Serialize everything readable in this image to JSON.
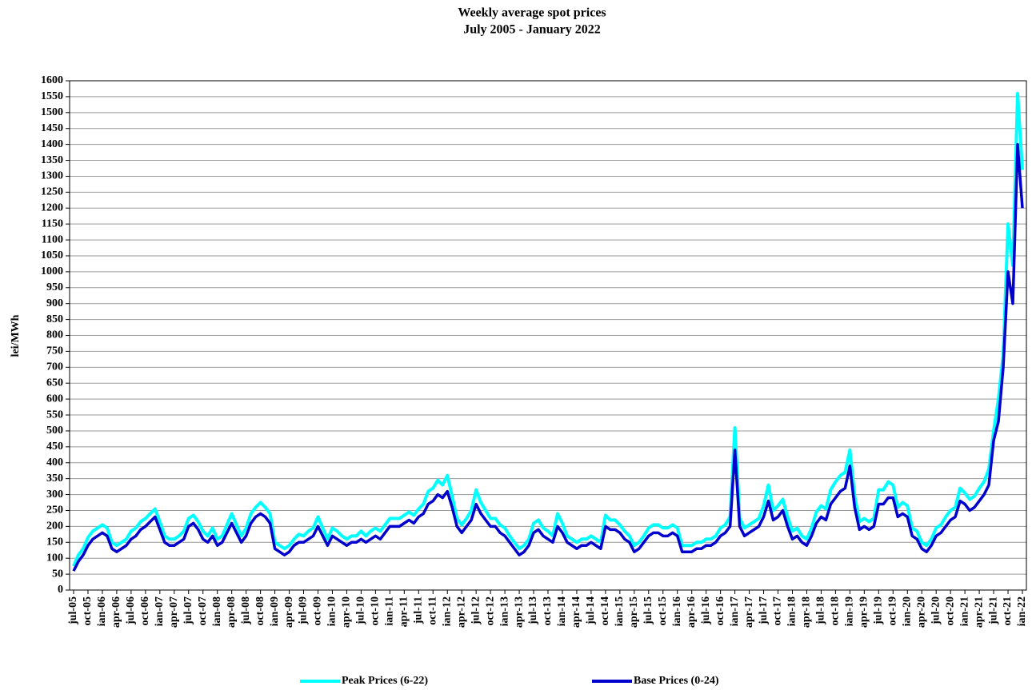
{
  "chart_data": {
    "type": "line",
    "title": "Weekly average spot prices",
    "subtitle": "July 2005 -  January 2022",
    "y_label": "lei/MWh",
    "categories": [
      "jul-05",
      null,
      null,
      "oct-05",
      null,
      null,
      "ian-06",
      null,
      null,
      "apr-06",
      null,
      null,
      "jul-06",
      null,
      null,
      "oct-06",
      null,
      null,
      "ian-07",
      null,
      null,
      "apr-07",
      null,
      null,
      "jul-07",
      null,
      null,
      "oct-07",
      null,
      null,
      "ian-08",
      null,
      null,
      "apr-08",
      null,
      null,
      "jul-08",
      null,
      null,
      "oct-08",
      null,
      null,
      "ian-09",
      null,
      null,
      "apr-09",
      null,
      null,
      "jul-09",
      null,
      null,
      "oct-09",
      null,
      null,
      "ian-10",
      null,
      null,
      "apr-10",
      null,
      null,
      "jul-10",
      null,
      null,
      "oct-10",
      null,
      null,
      "ian-11",
      null,
      null,
      "apr-11",
      null,
      null,
      "jul-11",
      null,
      null,
      "oct-11",
      null,
      null,
      "ian-12",
      null,
      null,
      "apr-12",
      null,
      null,
      "jul-12",
      null,
      null,
      "oct-12",
      null,
      null,
      "ian-13",
      null,
      null,
      "apr-13",
      null,
      null,
      "jul-13",
      null,
      null,
      "oct-13",
      null,
      null,
      "ian-14",
      null,
      null,
      "apr-14",
      null,
      null,
      "jul-14",
      null,
      null,
      "oct-14",
      null,
      null,
      "ian-15",
      null,
      null,
      "apr-15",
      null,
      null,
      "jul-15",
      null,
      null,
      "oct-15",
      null,
      null,
      "ian-16",
      null,
      null,
      "apr-16",
      null,
      null,
      "jul-16",
      null,
      null,
      "oct-16",
      null,
      null,
      "ian-17",
      null,
      null,
      "apr-17",
      null,
      null,
      "jul-17",
      null,
      null,
      "oct-17",
      null,
      null,
      "ian-18",
      null,
      null,
      "apr-18",
      null,
      null,
      "jul-18",
      null,
      null,
      "oct-18",
      null,
      null,
      "ian-19",
      null,
      null,
      "apr-19",
      null,
      null,
      "jul-19",
      null,
      null,
      "oct-19",
      null,
      null,
      "ian-20",
      null,
      null,
      "apr-20",
      null,
      null,
      "jul-20",
      null,
      null,
      "oct-20",
      null,
      null,
      "ian-21",
      null,
      null,
      "apr-21",
      null,
      null,
      "jul-21",
      null,
      null,
      "oct-21",
      null,
      null,
      "ian-22"
    ],
    "series": [
      {
        "name": "Peak Prices (6-22)",
        "color": "#00ffff",
        "values": [
          75,
          110,
          130,
          165,
          185,
          195,
          205,
          195,
          150,
          140,
          150,
          160,
          185,
          195,
          215,
          225,
          240,
          255,
          215,
          170,
          160,
          160,
          170,
          185,
          225,
          235,
          215,
          185,
          170,
          195,
          160,
          170,
          205,
          240,
          205,
          170,
          195,
          240,
          260,
          275,
          260,
          240,
          150,
          140,
          130,
          140,
          160,
          175,
          170,
          185,
          195,
          230,
          195,
          160,
          195,
          185,
          170,
          160,
          170,
          170,
          185,
          170,
          185,
          195,
          185,
          205,
          225,
          225,
          225,
          235,
          245,
          235,
          255,
          270,
          310,
          320,
          345,
          330,
          360,
          295,
          225,
          205,
          225,
          250,
          315,
          275,
          250,
          225,
          225,
          205,
          195,
          170,
          150,
          130,
          140,
          160,
          210,
          220,
          195,
          185,
          170,
          240,
          210,
          170,
          160,
          150,
          160,
          160,
          170,
          160,
          150,
          235,
          220,
          220,
          205,
          185,
          170,
          140,
          150,
          170,
          195,
          205,
          205,
          195,
          195,
          205,
          195,
          140,
          140,
          140,
          150,
          150,
          160,
          160,
          170,
          195,
          205,
          230,
          510,
          225,
          195,
          205,
          215,
          225,
          265,
          330,
          250,
          265,
          285,
          230,
          185,
          195,
          170,
          160,
          195,
          245,
          265,
          255,
          315,
          340,
          360,
          370,
          440,
          295,
          215,
          225,
          215,
          225,
          315,
          315,
          340,
          330,
          260,
          275,
          265,
          195,
          185,
          150,
          140,
          160,
          195,
          205,
          230,
          250,
          260,
          320,
          305,
          285,
          295,
          320,
          340,
          380,
          500,
          600,
          740,
          1150,
          1020,
          1560,
          1320
        ]
      },
      {
        "name": "Base Prices (0-24)",
        "color": "#0000cc",
        "values": [
          60,
          90,
          110,
          140,
          160,
          170,
          180,
          170,
          130,
          120,
          130,
          140,
          160,
          170,
          190,
          200,
          215,
          230,
          190,
          150,
          140,
          140,
          150,
          160,
          200,
          210,
          190,
          160,
          150,
          170,
          140,
          150,
          180,
          210,
          180,
          150,
          170,
          210,
          230,
          240,
          230,
          210,
          130,
          120,
          110,
          120,
          140,
          150,
          150,
          160,
          170,
          200,
          170,
          140,
          170,
          160,
          150,
          140,
          150,
          150,
          160,
          150,
          160,
          170,
          160,
          180,
          200,
          200,
          200,
          210,
          220,
          210,
          230,
          240,
          270,
          280,
          300,
          290,
          310,
          260,
          200,
          180,
          200,
          220,
          270,
          240,
          220,
          200,
          200,
          180,
          170,
          150,
          130,
          110,
          120,
          140,
          180,
          190,
          170,
          160,
          150,
          200,
          180,
          150,
          140,
          130,
          140,
          140,
          150,
          140,
          130,
          200,
          190,
          190,
          180,
          160,
          150,
          120,
          130,
          150,
          170,
          180,
          180,
          170,
          170,
          180,
          170,
          120,
          120,
          120,
          130,
          130,
          140,
          140,
          150,
          170,
          180,
          200,
          440,
          200,
          170,
          180,
          190,
          200,
          230,
          280,
          220,
          230,
          250,
          200,
          160,
          170,
          150,
          140,
          170,
          210,
          230,
          220,
          270,
          290,
          310,
          320,
          390,
          260,
          190,
          200,
          190,
          200,
          270,
          270,
          290,
          290,
          230,
          240,
          230,
          170,
          160,
          130,
          120,
          140,
          170,
          180,
          200,
          220,
          230,
          280,
          270,
          250,
          260,
          280,
          300,
          330,
          470,
          530,
          700,
          1000,
          900,
          1400,
          1200
        ]
      }
    ],
    "ylim": [
      0,
      1600
    ],
    "yticks": [
      0,
      50,
      100,
      150,
      200,
      250,
      300,
      350,
      400,
      450,
      500,
      550,
      600,
      650,
      700,
      750,
      800,
      850,
      900,
      950,
      1000,
      1050,
      1100,
      1150,
      1200,
      1250,
      1300,
      1350,
      1400,
      1450,
      1500,
      1550,
      1600
    ],
    "grid": true,
    "legend": "bottom"
  }
}
